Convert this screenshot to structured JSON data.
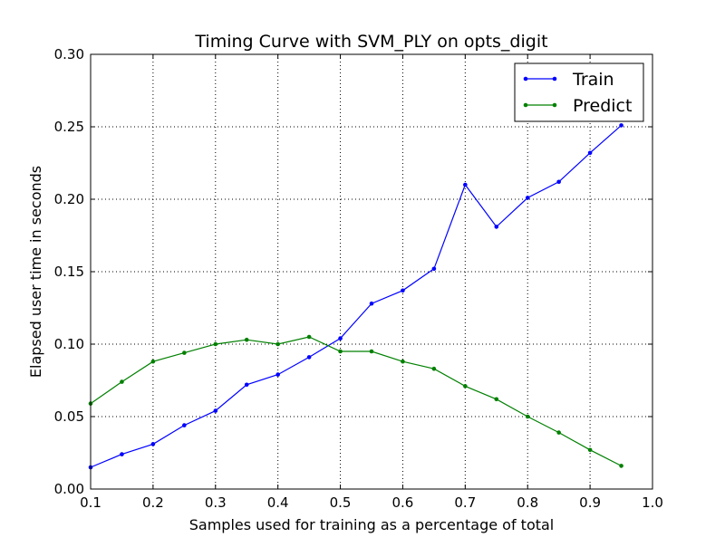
{
  "chart_data": {
    "type": "line",
    "title": "Timing Curve with SVM_PLY on opts_digit",
    "xlabel": "Samples used for training as a percentage of total",
    "ylabel": "Elapsed user time in seconds",
    "xlim": [
      0.1,
      1.0
    ],
    "ylim": [
      0.0,
      0.3
    ],
    "x_ticks": [
      "0.1",
      "0.2",
      "0.3",
      "0.4",
      "0.5",
      "0.6",
      "0.7",
      "0.8",
      "0.9",
      "1.0"
    ],
    "y_ticks": [
      "0.00",
      "0.05",
      "0.10",
      "0.15",
      "0.20",
      "0.25",
      "0.30"
    ],
    "grid": true,
    "grid_style": "dotted",
    "legend_position": "top-right",
    "x": [
      0.1,
      0.15,
      0.2,
      0.25,
      0.3,
      0.35,
      0.4,
      0.45,
      0.5,
      0.55,
      0.6,
      0.65,
      0.7,
      0.75,
      0.8,
      0.85,
      0.9,
      0.95
    ],
    "series": [
      {
        "name": "Train",
        "color": "#0000ff",
        "values": [
          0.015,
          0.024,
          0.031,
          0.044,
          0.054,
          0.072,
          0.079,
          0.091,
          0.104,
          0.128,
          0.137,
          0.152,
          0.21,
          0.181,
          0.201,
          0.212,
          0.232,
          0.251
        ]
      },
      {
        "name": "Predict",
        "color": "#008000",
        "values": [
          0.059,
          0.074,
          0.088,
          0.094,
          0.1,
          0.103,
          0.1,
          0.105,
          0.095,
          0.095,
          0.088,
          0.083,
          0.071,
          0.062,
          0.05,
          0.039,
          0.027,
          0.016
        ]
      }
    ]
  }
}
